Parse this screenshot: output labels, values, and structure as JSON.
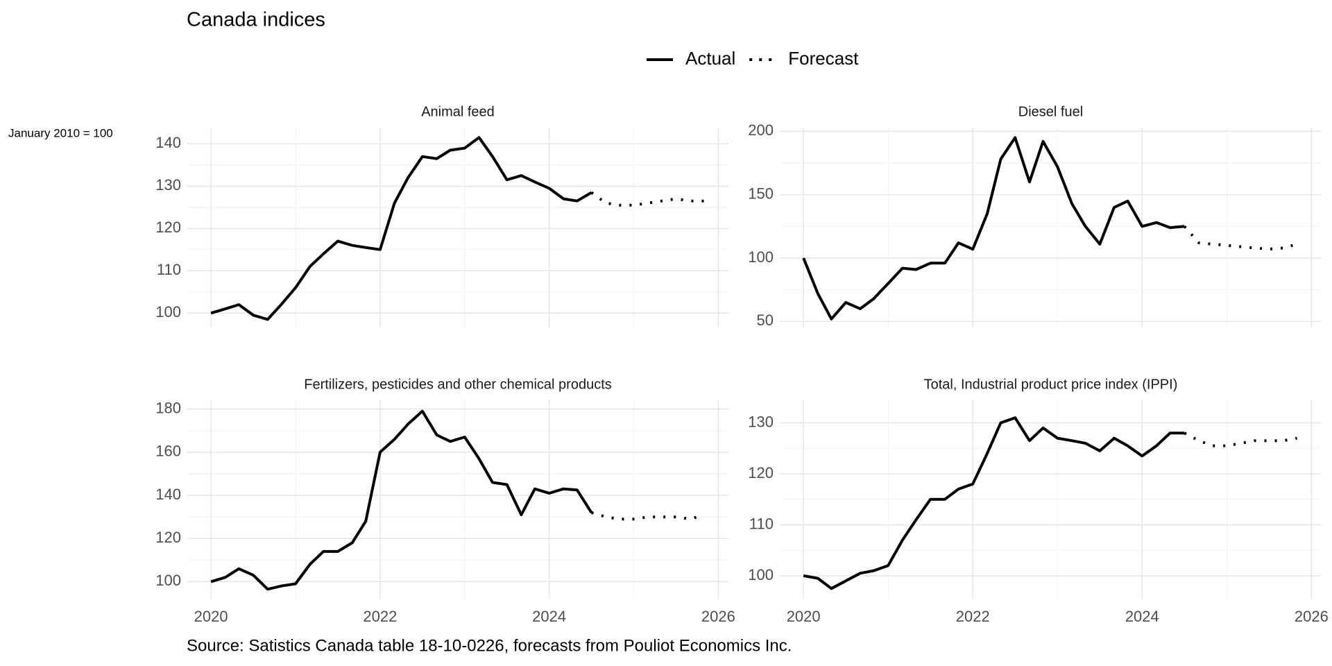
{
  "title": "Canada indices",
  "y_label": "January 2010 = 100",
  "caption": "Source: Satistics Canada table 18-10-0226, forecasts from Pouliot Economics Inc.",
  "chart_data": [
    {
      "type": "line",
      "title": "Animal feed",
      "x": [
        2020,
        2020.17,
        2020.33,
        2020.5,
        2020.67,
        2020.83,
        2021,
        2021.17,
        2021.33,
        2021.5,
        2021.67,
        2021.83,
        2022,
        2022.17,
        2022.33,
        2022.5,
        2022.67,
        2022.83,
        2023,
        2023.17,
        2023.33,
        2023.5,
        2023.67,
        2023.83,
        2024,
        2024.17,
        2024.33,
        2024.5,
        2024.67,
        2024.83,
        2025,
        2025.17,
        2025.33,
        2025.5,
        2025.67,
        2025.83
      ],
      "series": [
        {
          "name": "Actual",
          "color": "#000000",
          "style": "solid",
          "values": [
            100,
            101,
            102,
            99.5,
            98.5,
            102,
            106,
            111,
            114,
            117,
            116,
            115.5,
            115,
            126,
            132,
            137,
            136.5,
            138.5,
            139,
            141.5,
            137,
            131.5,
            132.5,
            131,
            129.5,
            127,
            126.5,
            128.5,
            null,
            null,
            null,
            null,
            null,
            null,
            null,
            null
          ]
        },
        {
          "name": "Forecast",
          "color": "#000000",
          "style": "dotted",
          "values": [
            null,
            null,
            null,
            null,
            null,
            null,
            null,
            null,
            null,
            null,
            null,
            null,
            null,
            null,
            null,
            null,
            null,
            null,
            null,
            null,
            null,
            null,
            null,
            null,
            null,
            null,
            null,
            128.5,
            126,
            125.5,
            125.5,
            126,
            126.5,
            127,
            126.5,
            126.5
          ]
        }
      ],
      "xlim": [
        2019.72,
        2026.12
      ],
      "ylim": [
        96.6,
        144
      ],
      "xticks": [
        2020,
        2022,
        2024,
        2026
      ],
      "yticks": [
        100,
        110,
        120,
        130,
        140
      ],
      "show_xtick_labels": false,
      "grid": true
    },
    {
      "type": "line",
      "title": "Diesel fuel",
      "x": [
        2020,
        2020.17,
        2020.33,
        2020.5,
        2020.67,
        2020.83,
        2021,
        2021.17,
        2021.33,
        2021.5,
        2021.67,
        2021.83,
        2022,
        2022.17,
        2022.33,
        2022.5,
        2022.67,
        2022.83,
        2023,
        2023.17,
        2023.33,
        2023.5,
        2023.67,
        2023.83,
        2024,
        2024.17,
        2024.33,
        2024.5,
        2024.67,
        2024.83,
        2025,
        2025.17,
        2025.33,
        2025.5,
        2025.67,
        2025.83
      ],
      "series": [
        {
          "name": "Actual",
          "color": "#000000",
          "style": "solid",
          "values": [
            100,
            72,
            52,
            65,
            60,
            68,
            80,
            92,
            91,
            96,
            96,
            112,
            107,
            135,
            178,
            195,
            160,
            192,
            172,
            143,
            125,
            111,
            140,
            145,
            125,
            128,
            124,
            125,
            null,
            null,
            null,
            null,
            null,
            null,
            null,
            null
          ]
        },
        {
          "name": "Forecast",
          "color": "#000000",
          "style": "dotted",
          "values": [
            null,
            null,
            null,
            null,
            null,
            null,
            null,
            null,
            null,
            null,
            null,
            null,
            null,
            null,
            null,
            null,
            null,
            null,
            null,
            null,
            null,
            null,
            null,
            null,
            null,
            null,
            null,
            125,
            112,
            111,
            110,
            109,
            108,
            107,
            108,
            111
          ]
        }
      ],
      "xlim": [
        2019.72,
        2026.12
      ],
      "ylim": [
        45.3,
        203.4
      ],
      "xticks": [
        2020,
        2022,
        2024,
        2026
      ],
      "yticks": [
        50,
        100,
        150,
        200
      ],
      "show_xtick_labels": false,
      "grid": true
    },
    {
      "type": "line",
      "title": "Fertilizers, pesticides and other chemical products",
      "x": [
        2020,
        2020.17,
        2020.33,
        2020.5,
        2020.67,
        2020.83,
        2021,
        2021.17,
        2021.33,
        2021.5,
        2021.67,
        2021.83,
        2022,
        2022.17,
        2022.33,
        2022.5,
        2022.67,
        2022.83,
        2023,
        2023.17,
        2023.33,
        2023.5,
        2023.67,
        2023.83,
        2024,
        2024.17,
        2024.33,
        2024.5,
        2024.67,
        2024.83,
        2025,
        2025.17,
        2025.33,
        2025.5,
        2025.67,
        2025.83
      ],
      "series": [
        {
          "name": "Actual",
          "color": "#000000",
          "style": "solid",
          "values": [
            100,
            102,
            106,
            103,
            96.5,
            98,
            99,
            108,
            114,
            114,
            118,
            128,
            160,
            166,
            173,
            179,
            168,
            165,
            167,
            157,
            146,
            145,
            131,
            143,
            141,
            143,
            142.5,
            132,
            null,
            null,
            null,
            null,
            null,
            null,
            null,
            null
          ]
        },
        {
          "name": "Forecast",
          "color": "#000000",
          "style": "dotted",
          "values": [
            null,
            null,
            null,
            null,
            null,
            null,
            null,
            null,
            null,
            null,
            null,
            null,
            null,
            null,
            null,
            null,
            null,
            null,
            null,
            null,
            null,
            null,
            null,
            null,
            null,
            null,
            null,
            132,
            130,
            129,
            129,
            130,
            130,
            130,
            129,
            131
          ]
        }
      ],
      "xlim": [
        2019.72,
        2026.12
      ],
      "ylim": [
        92.1,
        184.7
      ],
      "xticks": [
        2020,
        2022,
        2024,
        2026
      ],
      "yticks": [
        100,
        120,
        140,
        160,
        180
      ],
      "show_xtick_labels": true,
      "grid": true
    },
    {
      "type": "line",
      "title": "Total, Industrial product price index (IPPI)",
      "x": [
        2020,
        2020.17,
        2020.33,
        2020.5,
        2020.67,
        2020.83,
        2021,
        2021.17,
        2021.33,
        2021.5,
        2021.67,
        2021.83,
        2022,
        2022.17,
        2022.33,
        2022.5,
        2022.67,
        2022.83,
        2023,
        2023.17,
        2023.33,
        2023.5,
        2023.67,
        2023.83,
        2024,
        2024.17,
        2024.33,
        2024.5,
        2024.67,
        2024.83,
        2025,
        2025.17,
        2025.33,
        2025.5,
        2025.67,
        2025.83
      ],
      "series": [
        {
          "name": "Actual",
          "color": "#000000",
          "style": "solid",
          "values": [
            100,
            99.5,
            97.5,
            99,
            100.5,
            101,
            102,
            107,
            111,
            115,
            115,
            117,
            118,
            124,
            130,
            131,
            126.5,
            129,
            127,
            126.5,
            126,
            124.5,
            127,
            125.5,
            123.5,
            125.5,
            128,
            128,
            null,
            null,
            null,
            null,
            null,
            null,
            null,
            null
          ]
        },
        {
          "name": "Forecast",
          "color": "#000000",
          "style": "dotted",
          "values": [
            null,
            null,
            null,
            null,
            null,
            null,
            null,
            null,
            null,
            null,
            null,
            null,
            null,
            null,
            null,
            null,
            null,
            null,
            null,
            null,
            null,
            null,
            null,
            null,
            null,
            null,
            null,
            128,
            126.5,
            125.5,
            125.5,
            126,
            126.5,
            126.5,
            126.5,
            127
          ]
        }
      ],
      "xlim": [
        2019.72,
        2026.12
      ],
      "ylim": [
        95.5,
        134.7
      ],
      "xticks": [
        2020,
        2022,
        2024,
        2026
      ],
      "yticks": [
        100,
        110,
        120,
        130
      ],
      "show_xtick_labels": true,
      "grid": true
    }
  ]
}
